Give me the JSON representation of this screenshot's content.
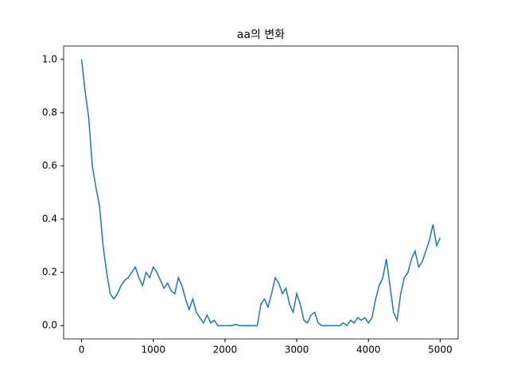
{
  "chart_data": {
    "type": "line",
    "title": "aa의 변화",
    "color": "#1f77b4",
    "x": [
      0,
      50,
      100,
      150,
      200,
      250,
      300,
      350,
      400,
      450,
      500,
      550,
      600,
      650,
      700,
      750,
      800,
      850,
      900,
      950,
      1000,
      1050,
      1100,
      1150,
      1200,
      1250,
      1300,
      1350,
      1400,
      1450,
      1500,
      1550,
      1600,
      1650,
      1700,
      1750,
      1800,
      1850,
      1900,
      1950,
      2000,
      2050,
      2100,
      2150,
      2200,
      2250,
      2300,
      2350,
      2400,
      2450,
      2500,
      2550,
      2600,
      2650,
      2700,
      2750,
      2800,
      2850,
      2900,
      2950,
      3000,
      3050,
      3100,
      3150,
      3200,
      3250,
      3300,
      3350,
      3400,
      3450,
      3500,
      3550,
      3600,
      3650,
      3700,
      3750,
      3800,
      3850,
      3900,
      3950,
      4000,
      4050,
      4100,
      4150,
      4200,
      4250,
      4300,
      4350,
      4400,
      4450,
      4500,
      4550,
      4600,
      4650,
      4700,
      4750,
      4800,
      4850,
      4900,
      4950,
      5000
    ],
    "values": [
      1.0,
      0.88,
      0.78,
      0.6,
      0.52,
      0.45,
      0.3,
      0.2,
      0.12,
      0.1,
      0.12,
      0.15,
      0.17,
      0.18,
      0.2,
      0.22,
      0.18,
      0.15,
      0.2,
      0.18,
      0.22,
      0.2,
      0.17,
      0.14,
      0.16,
      0.13,
      0.12,
      0.18,
      0.15,
      0.1,
      0.06,
      0.1,
      0.05,
      0.03,
      0.01,
      0.04,
      0.01,
      0.02,
      0,
      0,
      0,
      0,
      0,
      0.005,
      0,
      0,
      0,
      0,
      0,
      0,
      0.08,
      0.1,
      0.07,
      0.12,
      0.18,
      0.16,
      0.12,
      0.14,
      0.08,
      0.05,
      0.12,
      0.08,
      0.02,
      0.01,
      0.04,
      0.05,
      0.01,
      0,
      0,
      0,
      0,
      0,
      0,
      0.01,
      0,
      0.02,
      0.01,
      0.03,
      0.02,
      0.03,
      0.01,
      0.03,
      0.1,
      0.15,
      0.18,
      0.25,
      0.15,
      0.05,
      0.02,
      0.12,
      0.18,
      0.2,
      0.25,
      0.28,
      0.22,
      0.24,
      0.28,
      0.32,
      0.38,
      0.3,
      0.33
    ],
    "xlim": [
      -250,
      5250
    ],
    "ylim": [
      -0.05,
      1.05
    ],
    "xticks": [
      0,
      1000,
      2000,
      3000,
      4000,
      5000
    ],
    "yticks": [
      {
        "value": 0,
        "label": "0.0"
      },
      0.2,
      0.4,
      0.6,
      0.8,
      {
        "value": 1,
        "label": "1.0"
      }
    ]
  }
}
